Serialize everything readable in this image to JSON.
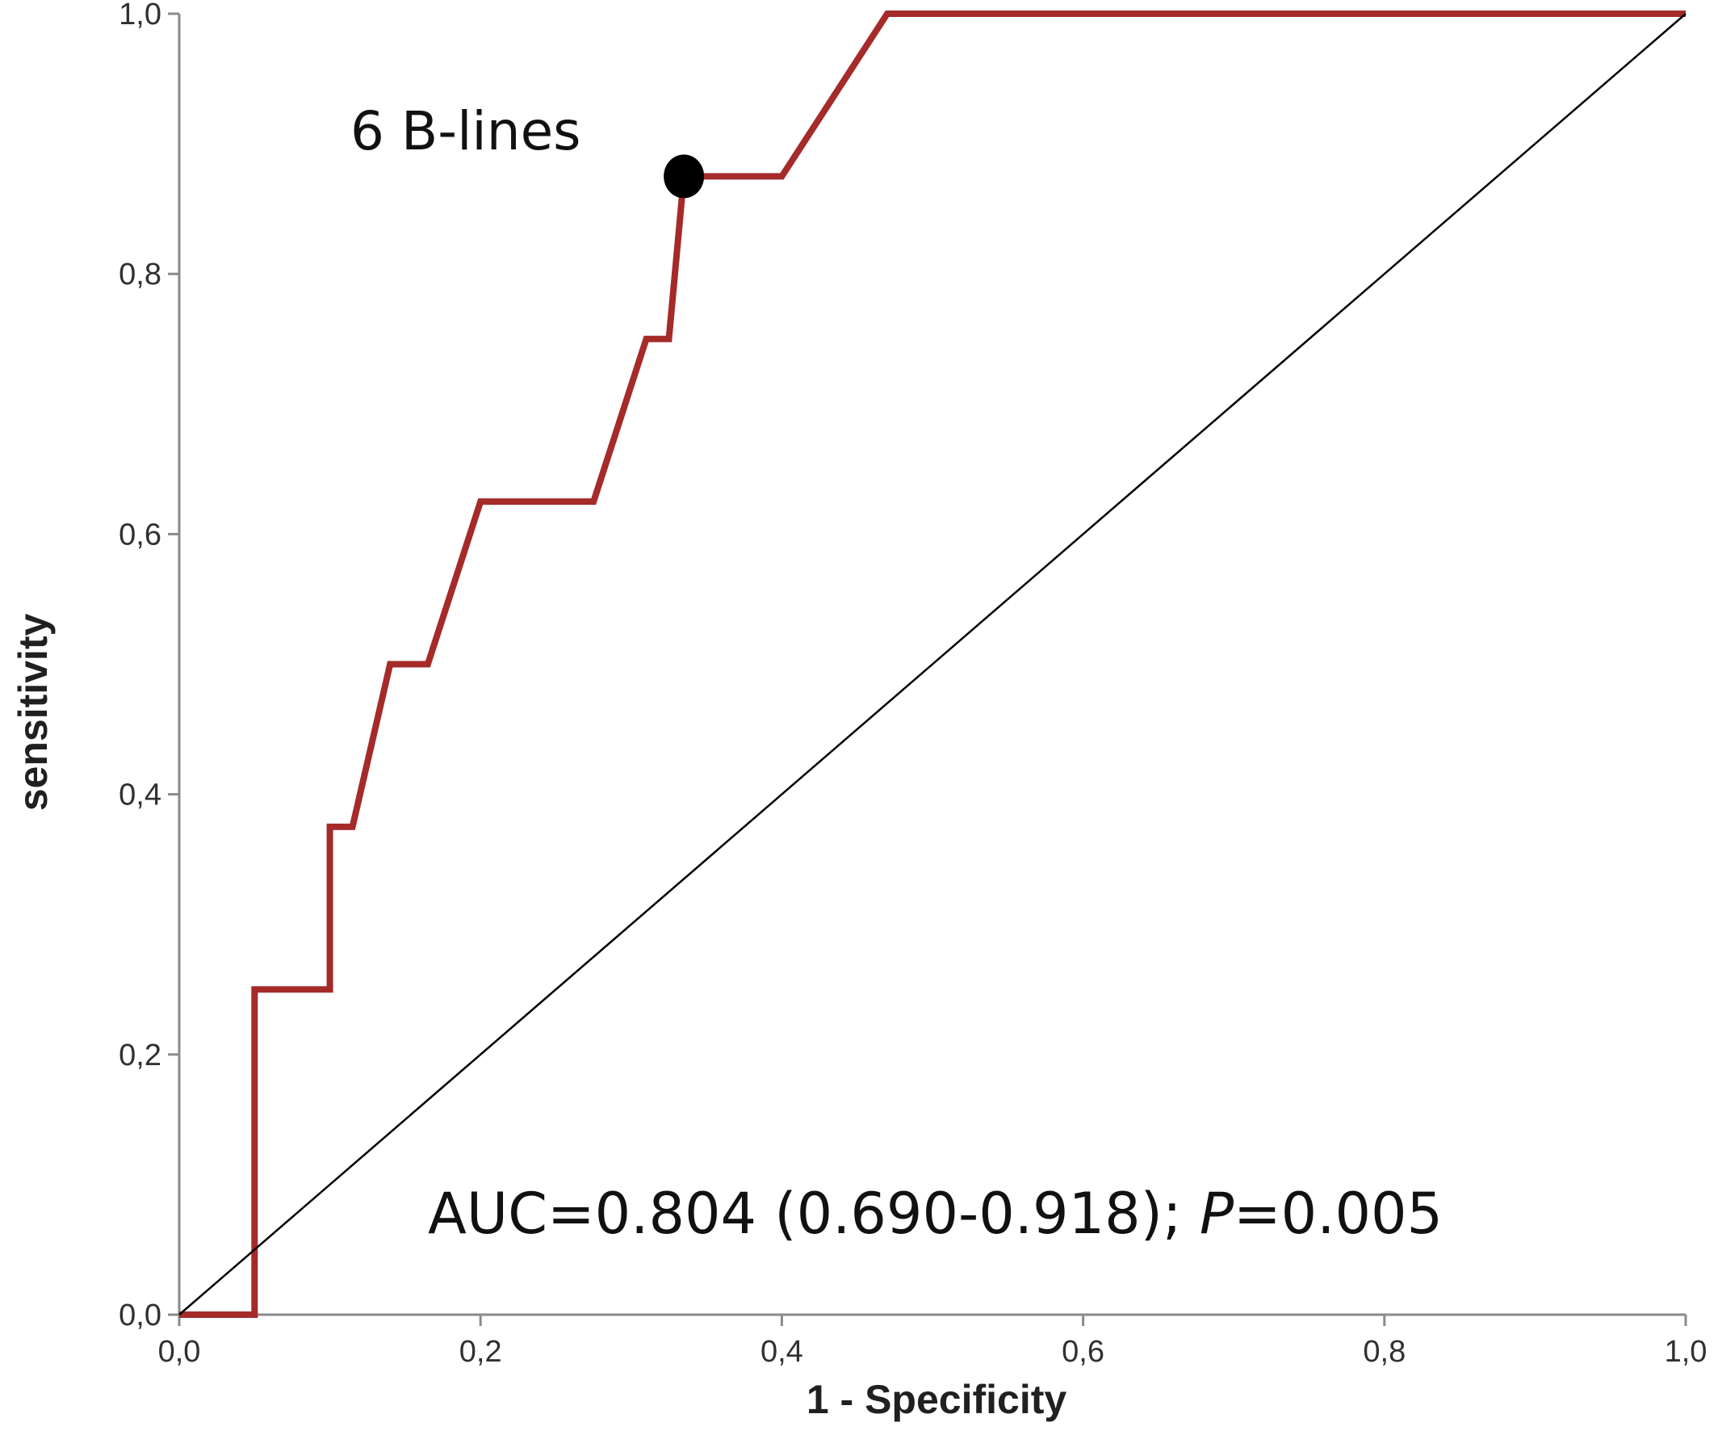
{
  "chart_data": {
    "type": "line",
    "xlabel": "1 - Specificity",
    "ylabel": "sensitivity",
    "xlim": [
      0,
      1
    ],
    "ylim": [
      0,
      1
    ],
    "x_ticks": [
      "0,0",
      "0,2",
      "0,4",
      "0,6",
      "0,8",
      "1,0"
    ],
    "y_ticks": [
      "0,0",
      "0,2",
      "0,4",
      "0,6",
      "0,8",
      "1,0"
    ],
    "grid": false,
    "series": [
      {
        "color": "#a52a2a",
        "points": [
          [
            0.0,
            0.0
          ],
          [
            0.05,
            0.0
          ],
          [
            0.05,
            0.25
          ],
          [
            0.1,
            0.25
          ],
          [
            0.1,
            0.375
          ],
          [
            0.115,
            0.375
          ],
          [
            0.14,
            0.5
          ],
          [
            0.165,
            0.5
          ],
          [
            0.2,
            0.625
          ],
          [
            0.275,
            0.625
          ],
          [
            0.31,
            0.75
          ],
          [
            0.325,
            0.75
          ],
          [
            0.335,
            0.875
          ],
          [
            0.4,
            0.875
          ],
          [
            0.47,
            1.0
          ],
          [
            1.0,
            1.0
          ]
        ]
      },
      {
        "color": "#000000",
        "points": [
          [
            0.0,
            0.0
          ],
          [
            1.0,
            1.0
          ]
        ]
      }
    ],
    "marker": {
      "x": 0.335,
      "y": 0.875,
      "label": "6 B-lines",
      "color": "#000000"
    },
    "annotation": {
      "prefix": "AUC=0.804 (0.690-0.918); ",
      "p_symbol": "P",
      "suffix": "=0.005"
    }
  }
}
